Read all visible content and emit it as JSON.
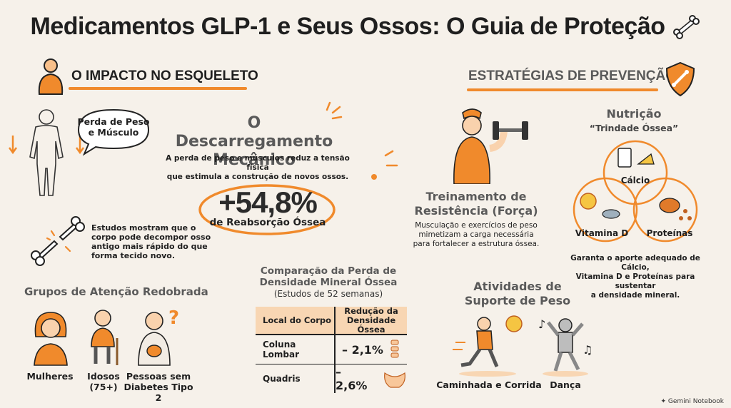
{
  "title": "Medicamentos GLP-1 e Seus Ossos: O Guia de Proteção",
  "left": {
    "section_title": "O IMPACTO NO ESQUELETO",
    "speech": [
      "Perda de Peso",
      "e Músculo"
    ],
    "mechanical": {
      "title_line1": "O Descarregamento",
      "title_line2": "Mecânico",
      "desc_line1": "A perda de peso e músculos reduz a tensão física",
      "desc_line2": "que estimula a construção de novos ossos."
    },
    "stat": {
      "value": "+54,8%",
      "label": "de Reabsorção Óssea"
    },
    "studies": [
      "Estudos mostram que o",
      "corpo pode decompor osso",
      "antigo mais rápido do que",
      "forma tecido novo."
    ],
    "groups": {
      "title": "Grupos de Atenção Redobrada",
      "items": [
        {
          "label1": "Mulheres",
          "label2": ""
        },
        {
          "label1": "Idosos",
          "label2": "(75+)"
        },
        {
          "label1": "Pessoas sem",
          "label2": "Diabetes Tipo 2"
        }
      ]
    },
    "comparison": {
      "title_line1": "Comparação da Perda de",
      "title_line2": "Densidade Mineral Óssea",
      "subtitle": "(Estudos de 52 semanas)",
      "col1": "Local do Corpo",
      "col2_line1": "Redução da",
      "col2_line2": "Densidade Óssea",
      "rows": [
        {
          "site": "Coluna Lombar",
          "value": "– 2,1%"
        },
        {
          "site": "Quadris",
          "value": "– 2,6%"
        }
      ]
    }
  },
  "right": {
    "section_title": "ESTRATÉGIAS DE PREVENÇÃO",
    "training": {
      "title_line1": "Treinamento de",
      "title_line2": "Resistência (Força)",
      "desc": [
        "Musculação e exercícios de peso",
        "mimetizam a carga necessária",
        "para fortalecer a estrutura óssea."
      ]
    },
    "nutrition": {
      "title": "Nutrição",
      "subtitle": "“Trindade Óssea”",
      "circles": [
        "Cálcio",
        "Vitamina D",
        "Proteínas"
      ],
      "desc": [
        "Garanta o aporte adequado de Cálcio,",
        "Vitamina D e Proteínas para sustentar",
        "a densidade mineral."
      ]
    },
    "activities": {
      "title_line1": "Atividades de",
      "title_line2": "Suporte de Peso",
      "items": [
        "Caminhada e Corrida",
        "Dança"
      ]
    }
  },
  "footer": {
    "brand": "Gemini Notebook"
  },
  "colors": {
    "accent": "#f08a2c",
    "background": "#f6f1ea",
    "ink": "#1f1f1f"
  }
}
